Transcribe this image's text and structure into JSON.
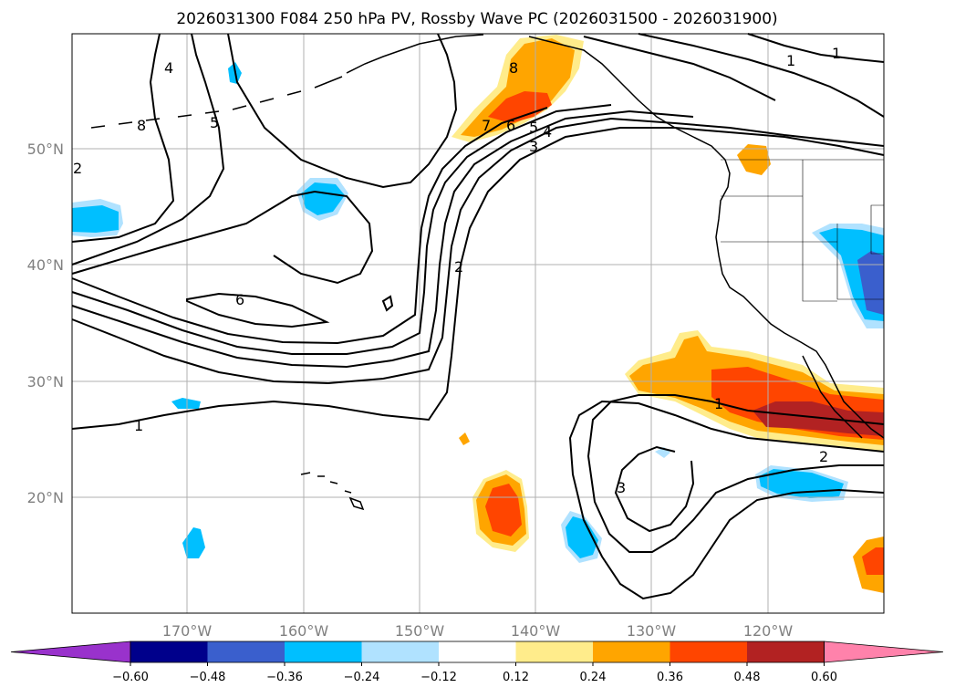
{
  "title": "2026031300 F084 250 hPa PV, Rossby Wave PC (2026031500 - 2026031900)",
  "lat_labels": [
    "50°N",
    "40°N",
    "30°N",
    "20°N"
  ],
  "lon_labels": [
    "170°W",
    "160°W",
    "150°W",
    "140°W",
    "130°W",
    "120°W"
  ],
  "colorbar": {
    "ticks": [
      "−0.60",
      "−0.48",
      "−0.36",
      "−0.24",
      "−0.12",
      "0.12",
      "0.24",
      "0.36",
      "0.48",
      "0.60"
    ],
    "colors": [
      "#9932cc",
      "#00008b",
      "#3a5fcd",
      "#00bfff",
      "#b0e2ff",
      "#ffffff",
      "#ffec8b",
      "#ffa500",
      "#ff4500",
      "#b22222",
      "#ff82ab"
    ]
  },
  "contour_labels": [
    "4",
    "8",
    "2",
    "5",
    "1",
    "1",
    "8",
    "7",
    "6",
    "5",
    "4",
    "3",
    "2",
    "6",
    "1",
    "1",
    "2",
    "3"
  ],
  "colors": {
    "grid": "#b0b0b0",
    "land": "#000000",
    "contour": "#000000"
  }
}
